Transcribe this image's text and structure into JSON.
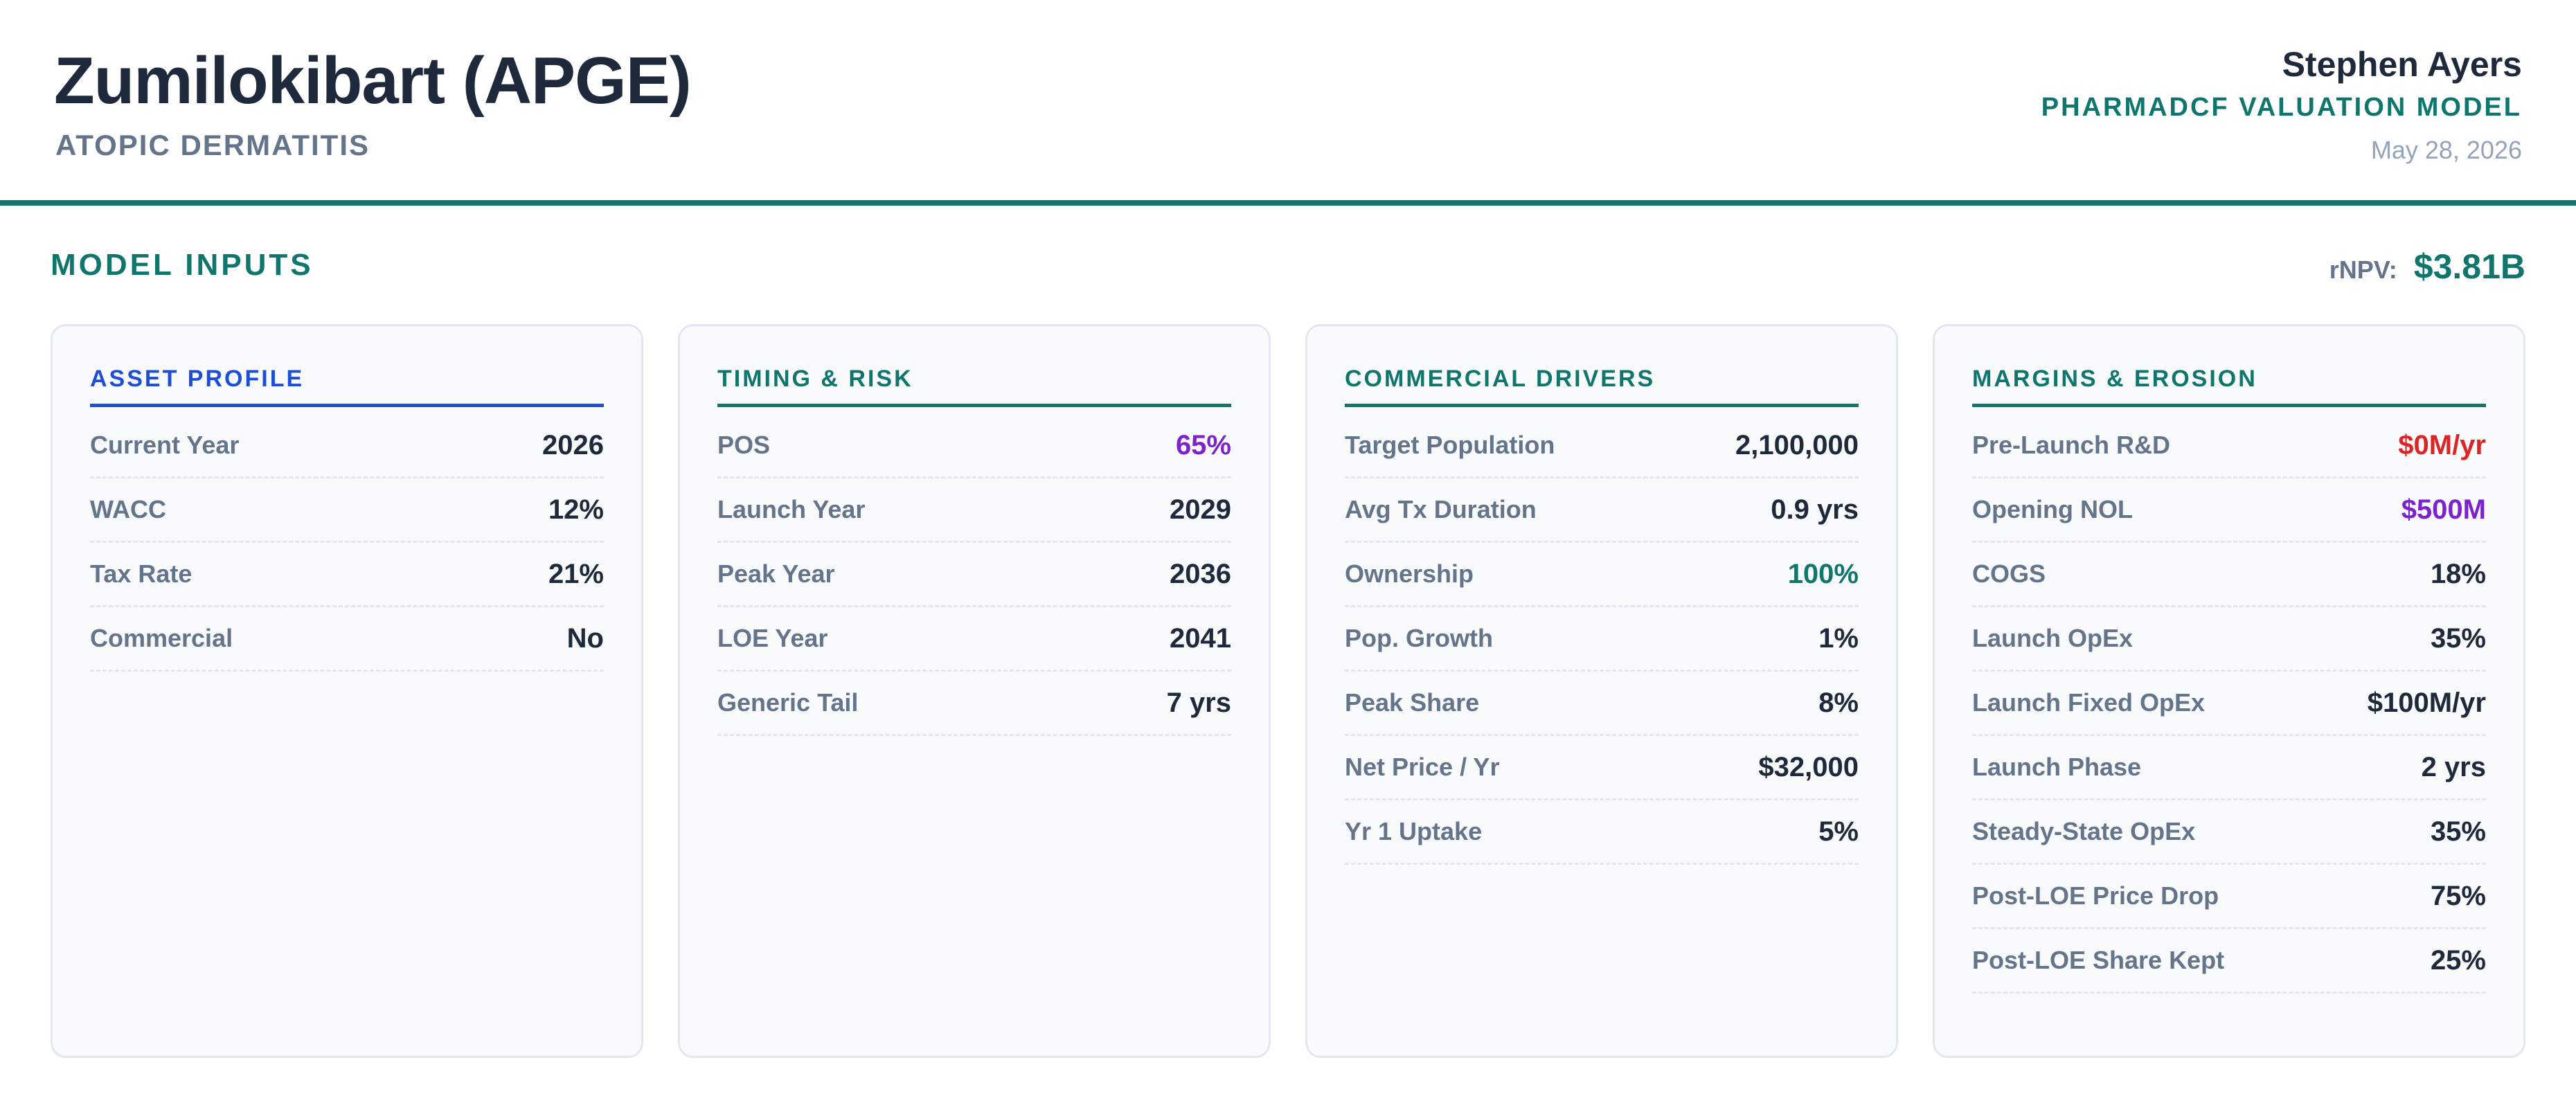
{
  "header": {
    "title": "Zumilokibart (APGE)",
    "subtitle": "ATOPIC DERMATITIS",
    "author": "Stephen Ayers",
    "model_name": "PHARMADCF VALUATION MODEL",
    "date": "May 28, 2026"
  },
  "section": {
    "title": "MODEL INPUTS",
    "rnpv_label": "rNPV:",
    "rnpv_value": "$3.81B"
  },
  "colors": {
    "teal": "#0f766e",
    "blue": "#1d4ed8",
    "purple": "#7e22ce",
    "red": "#dc2626",
    "dark": "#1e293b",
    "muted": "#64748b"
  },
  "cards": [
    {
      "title": "ASSET PROFILE",
      "accent": "#1d4ed8",
      "rows": [
        {
          "label": "Current Year",
          "value": "2026",
          "color": "#1e293b"
        },
        {
          "label": "WACC",
          "value": "12%",
          "color": "#1e293b"
        },
        {
          "label": "Tax Rate",
          "value": "21%",
          "color": "#1e293b"
        },
        {
          "label": "Commercial",
          "value": "No",
          "color": "#1e293b"
        }
      ]
    },
    {
      "title": "TIMING & RISK",
      "accent": "#0f766e",
      "rows": [
        {
          "label": "POS",
          "value": "65%",
          "color": "#7e22ce"
        },
        {
          "label": "Launch Year",
          "value": "2029",
          "color": "#1e293b"
        },
        {
          "label": "Peak Year",
          "value": "2036",
          "color": "#1e293b"
        },
        {
          "label": "LOE Year",
          "value": "2041",
          "color": "#1e293b"
        },
        {
          "label": "Generic Tail",
          "value": "7 yrs",
          "color": "#1e293b"
        }
      ]
    },
    {
      "title": "COMMERCIAL DRIVERS",
      "accent": "#0f766e",
      "rows": [
        {
          "label": "Target Population",
          "value": "2,100,000",
          "color": "#1e293b"
        },
        {
          "label": "Avg Tx Duration",
          "value": "0.9 yrs",
          "color": "#1e293b"
        },
        {
          "label": "Ownership",
          "value": "100%",
          "color": "#0f766e"
        },
        {
          "label": "Pop. Growth",
          "value": "1%",
          "color": "#1e293b"
        },
        {
          "label": "Peak Share",
          "value": "8%",
          "color": "#1e293b"
        },
        {
          "label": "Net Price / Yr",
          "value": "$32,000",
          "color": "#1e293b"
        },
        {
          "label": "Yr 1 Uptake",
          "value": "5%",
          "color": "#1e293b"
        }
      ]
    },
    {
      "title": "MARGINS & EROSION",
      "accent": "#0f766e",
      "rows": [
        {
          "label": "Pre-Launch R&D",
          "value": "$0M/yr",
          "color": "#dc2626"
        },
        {
          "label": "Opening NOL",
          "value": "$500M",
          "color": "#7e22ce"
        },
        {
          "label": "COGS",
          "value": "18%",
          "color": "#1e293b"
        },
        {
          "label": "Launch OpEx",
          "value": "35%",
          "color": "#1e293b"
        },
        {
          "label": "Launch Fixed OpEx",
          "value": "$100M/yr",
          "color": "#1e293b"
        },
        {
          "label": "Launch Phase",
          "value": "2 yrs",
          "color": "#1e293b"
        },
        {
          "label": "Steady-State OpEx",
          "value": "35%",
          "color": "#1e293b"
        },
        {
          "label": "Post-LOE Price Drop",
          "value": "75%",
          "color": "#1e293b"
        },
        {
          "label": "Post-LOE Share Kept",
          "value": "25%",
          "color": "#1e293b"
        }
      ]
    }
  ]
}
